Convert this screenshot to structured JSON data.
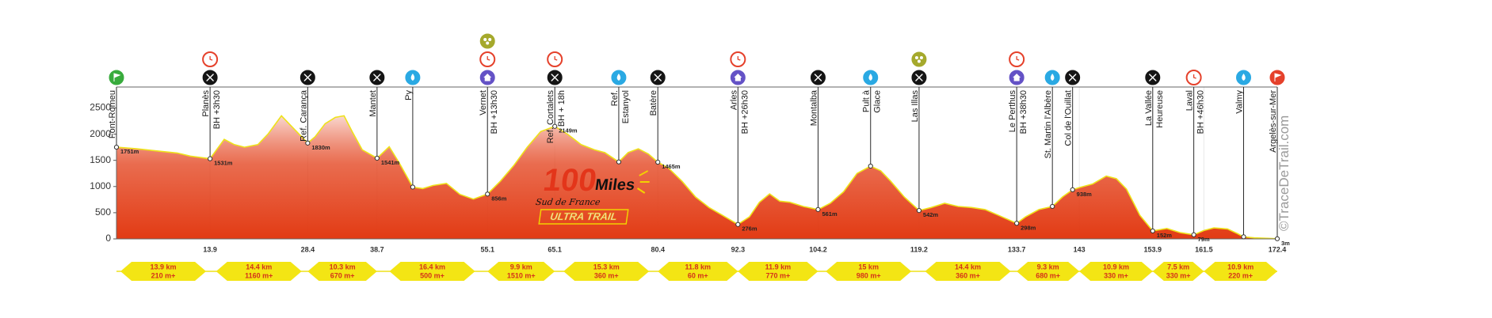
{
  "chart_data": {
    "type": "area",
    "xlim": [
      0,
      172.4
    ],
    "ylim": [
      0,
      2900
    ],
    "xticks": [
      13.9,
      28.4,
      38.7,
      55.1,
      65.1,
      80.4,
      92.3,
      104.2,
      119.2,
      133.7,
      143,
      153.9,
      161.5,
      172.4
    ],
    "yticks": [
      0,
      500,
      1000,
      1500,
      2000,
      2500
    ],
    "grid": true,
    "color": "#e23b14",
    "line_color": "#eee21a",
    "x": [
      0,
      3,
      6,
      9,
      11,
      13.9,
      16,
      17.5,
      19,
      21,
      22.5,
      24.5,
      26,
      27.5,
      28.4,
      29.5,
      31,
      32.5,
      33.8,
      35,
      36.5,
      38.7,
      40.5,
      42,
      44,
      45.5,
      47,
      49,
      51,
      53,
      55.1,
      57,
      59,
      61,
      63,
      65.1,
      67,
      69,
      71,
      72.5,
      74.6,
      76,
      77.5,
      79,
      80.4,
      82,
      84,
      86,
      88,
      90,
      92.3,
      94,
      95.5,
      97,
      98.5,
      100,
      102,
      104.2,
      106,
      108,
      110,
      112,
      113.5,
      115,
      117,
      119.2,
      121,
      123,
      125,
      127,
      129,
      131,
      133.7,
      135,
      137,
      139,
      140.5,
      142,
      143,
      145,
      147,
      148.5,
      150,
      152,
      153.9,
      156,
      158,
      160,
      161.5,
      163,
      165,
      166.5,
      167.4,
      169,
      171,
      172.4
    ],
    "values": [
      1751,
      1720,
      1680,
      1640,
      1580,
      1531,
      1900,
      1800,
      1750,
      1800,
      2000,
      2350,
      2150,
      1950,
      1830,
      1950,
      2200,
      2320,
      2350,
      2050,
      1700,
      1541,
      1760,
      1450,
      990,
      960,
      1020,
      1060,
      850,
      760,
      856,
      1100,
      1400,
      1750,
      2050,
      2149,
      2000,
      1800,
      1700,
      1650,
      1470,
      1650,
      1720,
      1620,
      1465,
      1350,
      1100,
      800,
      600,
      450,
      276,
      420,
      700,
      860,
      720,
      700,
      620,
      561,
      680,
      900,
      1250,
      1390,
      1300,
      1100,
      800,
      542,
      600,
      680,
      620,
      600,
      560,
      450,
      298,
      420,
      560,
      620,
      800,
      938,
      980,
      1050,
      1200,
      1150,
      950,
      450,
      152,
      200,
      120,
      79,
      160,
      210,
      190,
      100,
      40,
      20,
      10,
      3
    ],
    "waypoints": [
      {
        "name": [
          "Font-Romeu"
        ],
        "km": 0,
        "elevation": 1751,
        "elevation_label": "1751m",
        "icons": [
          "flag-start"
        ]
      },
      {
        "name": [
          "Planès",
          "BH +3h30"
        ],
        "km": 13.9,
        "elevation": 1531,
        "elevation_label": "1531m",
        "icons": [
          "clock",
          "food"
        ]
      },
      {
        "name": [
          "Ref. Carança"
        ],
        "km": 28.4,
        "elevation": 1830,
        "elevation_label": "1830m",
        "icons": [
          "food"
        ]
      },
      {
        "name": [
          "Mantet"
        ],
        "km": 38.7,
        "elevation": 1541,
        "elevation_label": "1541m",
        "icons": [
          "food"
        ]
      },
      {
        "name": [
          "Py"
        ],
        "km": 44,
        "elevation": 990,
        "icons": [
          "water"
        ]
      },
      {
        "name": [
          "Vernet",
          "BH +13h30"
        ],
        "km": 55.1,
        "elevation": 856,
        "elevation_label": "856m",
        "icons": [
          "crew",
          "clock",
          "lodge"
        ]
      },
      {
        "name": [
          "Ref. Cortalets",
          "BH + 18h"
        ],
        "km": 65.1,
        "elevation": 2149,
        "elevation_label": "2149m",
        "icons": [
          "clock",
          "food"
        ]
      },
      {
        "name": [
          "Ref.",
          "Estanyol"
        ],
        "km": 74.6,
        "elevation": 1470,
        "icons": [
          "water"
        ]
      },
      {
        "name": [
          "Batère"
        ],
        "km": 80.4,
        "elevation": 1465,
        "elevation_label": "1465m",
        "icons": [
          "food"
        ]
      },
      {
        "name": [
          "Arles",
          "BH +26h30"
        ],
        "km": 92.3,
        "elevation": 276,
        "elevation_label": "276m",
        "icons": [
          "clock",
          "lodge"
        ]
      },
      {
        "name": [
          "Montalba"
        ],
        "km": 104.2,
        "elevation": 561,
        "elevation_label": "561m",
        "icons": [
          "food"
        ]
      },
      {
        "name": [
          "Pult à",
          "Glace"
        ],
        "km": 112,
        "elevation": 1390,
        "icons": [
          "water"
        ]
      },
      {
        "name": [
          "Las Illas"
        ],
        "km": 119.2,
        "elevation": 542,
        "elevation_label": "542m",
        "icons": [
          "crew",
          "food"
        ]
      },
      {
        "name": [
          "Le Perthus",
          "BH +38h30"
        ],
        "km": 133.7,
        "elevation": 298,
        "elevation_label": "298m",
        "icons": [
          "clock",
          "lodge"
        ]
      },
      {
        "name": [
          "St. Martin l'Albère"
        ],
        "km": 139,
        "elevation": 620,
        "icons": [
          "water"
        ]
      },
      {
        "name": [
          "Col de l'Ouillat"
        ],
        "km": 142,
        "elevation": 938,
        "elevation_label": "938m",
        "icons": [
          "food"
        ]
      },
      {
        "name": [
          "La Vallée",
          "Heureuse"
        ],
        "km": 153.9,
        "elevation": 152,
        "elevation_label": "152m",
        "icons": [
          "food"
        ]
      },
      {
        "name": [
          "Laval",
          "BH +46h30"
        ],
        "km": 160,
        "elevation": 79,
        "elevation_label": "79m",
        "icons": [
          "clock"
        ]
      },
      {
        "name": [
          "Valmy"
        ],
        "km": 167.4,
        "elevation": 40,
        "icons": [
          "water"
        ]
      },
      {
        "name": [
          "Argelès-sur-Mer"
        ],
        "km": 172.4,
        "elevation": 3,
        "elevation_label": "3m",
        "icons": [
          "flag-finish"
        ]
      }
    ],
    "segments": [
      {
        "distance": "13.9 km",
        "gain": "210 m+"
      },
      {
        "distance": "14.4 km",
        "gain": "1160 m+"
      },
      {
        "distance": "10.3 km",
        "gain": "670 m+"
      },
      {
        "distance": "16.4 km",
        "gain": "500 m+"
      },
      {
        "distance": "9.9 km",
        "gain": "1510 m+"
      },
      {
        "distance": "15.3 km",
        "gain": "360 m+"
      },
      {
        "distance": "11.8 km",
        "gain": "60 m+"
      },
      {
        "distance": "11.9 km",
        "gain": "770 m+"
      },
      {
        "distance": "15 km",
        "gain": "980 m+"
      },
      {
        "distance": "14.4 km",
        "gain": "360 m+"
      },
      {
        "distance": "9.3 km",
        "gain": "680 m+"
      },
      {
        "distance": "10.9 km",
        "gain": "330 m+"
      },
      {
        "distance": "7.5 km",
        "gain": "330 m+"
      },
      {
        "distance": "10.9 km",
        "gain": "220 m+"
      }
    ],
    "logo": {
      "number": "100",
      "word": "Miles",
      "region": "Sud de France",
      "tag": "ULTRA TRAIL"
    },
    "watermark": "©TraceDeTrail.com"
  }
}
